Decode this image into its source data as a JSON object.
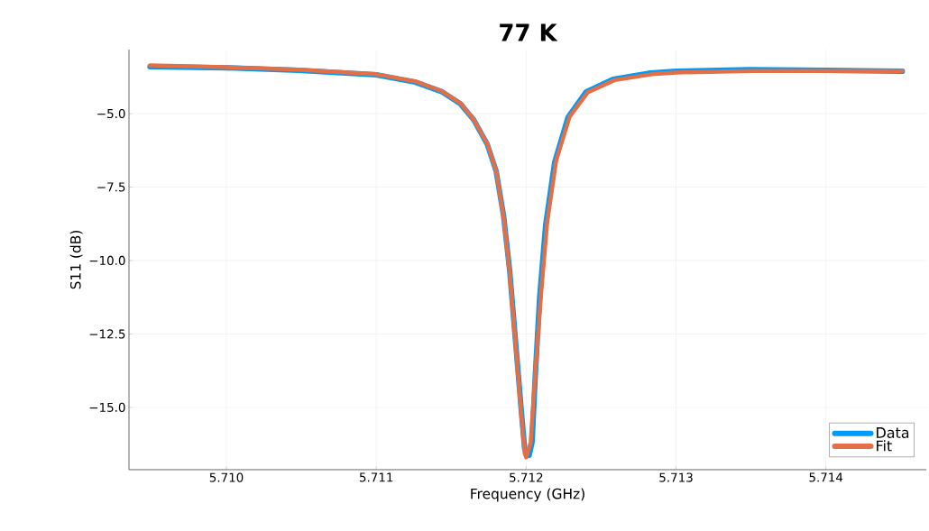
{
  "chart_data": {
    "type": "line",
    "title": "77 K",
    "xlabel": "Frequency (GHz)",
    "ylabel": "S11 (dB)",
    "xlim": [
      5.70935,
      5.71467
    ],
    "ylim": [
      -17.12,
      -2.82
    ],
    "xticks": [
      {
        "value": 5.71,
        "label": "5.710"
      },
      {
        "value": 5.711,
        "label": "5.711"
      },
      {
        "value": 5.712,
        "label": "5.712"
      },
      {
        "value": 5.713,
        "label": "5.713"
      },
      {
        "value": 5.714,
        "label": "5.714"
      }
    ],
    "yticks": [
      {
        "value": -5.0,
        "label": "−5.0"
      },
      {
        "value": -7.5,
        "label": "−7.5"
      },
      {
        "value": -10.0,
        "label": "−10.0"
      },
      {
        "value": -12.5,
        "label": "−12.5"
      },
      {
        "value": -15.0,
        "label": "−15.0"
      }
    ],
    "grid": true,
    "legend": "bottom right",
    "marker": "none",
    "line_style": "solid",
    "series": [
      {
        "name": "Data",
        "color": "#009af9",
        "x": [
          5.70949,
          5.71,
          5.71048,
          5.711,
          5.71126,
          5.71144,
          5.71156,
          5.71165,
          5.71174,
          5.7118,
          5.71185,
          5.71189,
          5.71193,
          5.71197,
          5.71199,
          5.71202,
          5.71204,
          5.71206,
          5.71209,
          5.71213,
          5.71219,
          5.71228,
          5.7124,
          5.71258,
          5.71283,
          5.713,
          5.71349,
          5.714,
          5.71451
        ],
        "values": [
          -3.4,
          -3.44,
          -3.53,
          -3.68,
          -3.93,
          -4.26,
          -4.66,
          -5.21,
          -6.04,
          -6.96,
          -8.5,
          -10.34,
          -12.79,
          -15.25,
          -16.41,
          -16.63,
          -16.17,
          -14.02,
          -11.26,
          -8.8,
          -6.66,
          -5.12,
          -4.26,
          -3.83,
          -3.62,
          -3.56,
          -3.5,
          -3.53,
          -3.56
        ]
      },
      {
        "name": "Fit",
        "color": "#e26f46",
        "x": [
          5.70949,
          5.71,
          5.71048,
          5.711,
          5.71126,
          5.71144,
          5.71156,
          5.71165,
          5.71174,
          5.7118,
          5.71185,
          5.71189,
          5.71193,
          5.71197,
          5.71199,
          5.712,
          5.71203,
          5.71206,
          5.7121,
          5.71214,
          5.7122,
          5.71229,
          5.71241,
          5.71259,
          5.71284,
          5.713,
          5.71349,
          5.714,
          5.71451
        ],
        "values": [
          -3.36,
          -3.42,
          -3.5,
          -3.66,
          -3.9,
          -4.24,
          -4.64,
          -5.2,
          -6.02,
          -6.96,
          -8.55,
          -10.4,
          -12.9,
          -15.4,
          -16.55,
          -16.7,
          -16.2,
          -13.9,
          -11.1,
          -8.7,
          -6.6,
          -5.1,
          -4.28,
          -3.86,
          -3.66,
          -3.6,
          -3.55,
          -3.55,
          -3.55
        ]
      }
    ]
  }
}
